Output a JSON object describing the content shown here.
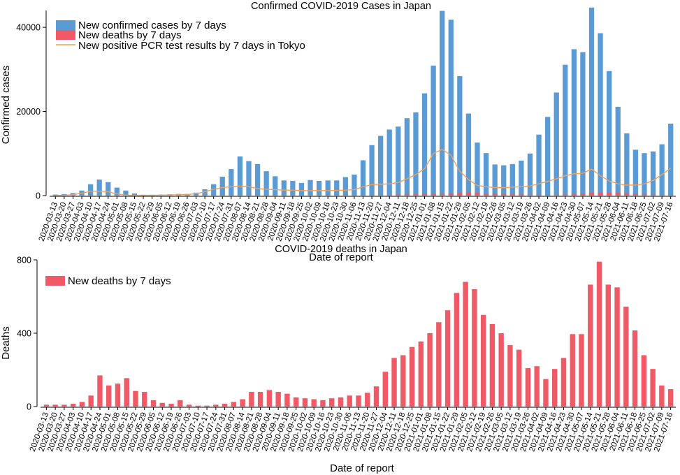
{
  "page": {
    "title": "Confirmed COVID-2019 Cases in Japan"
  },
  "colors": {
    "cases": "#5b9bd5",
    "deaths": "#ef5a66",
    "pcr": "#f0a05a",
    "axis": "#000000"
  },
  "chart_data": [
    {
      "type": "bar",
      "title": "Confirmed COVID-2019 Cases in Japan",
      "xlabel": "Date of report",
      "ylabel": "Confirmed cases",
      "ylim": [
        0,
        44000
      ],
      "yticks": [
        0,
        20000,
        40000
      ],
      "legend_position": "top-left",
      "grid": false,
      "categories": [
        "2020-03-13",
        "2020-03-20",
        "2020-03-27",
        "2020-04-03",
        "2020-04-10",
        "2020-04-17",
        "2020-04-24",
        "2020-05-01",
        "2020-05-08",
        "2020-05-15",
        "2020-05-22",
        "2020-05-29",
        "2020-06-05",
        "2020-06-12",
        "2020-06-19",
        "2020-06-26",
        "2020-07-03",
        "2020-07-10",
        "2020-07-17",
        "2020-07-24",
        "2020-07-31",
        "2020-08-07",
        "2020-08-14",
        "2020-08-21",
        "2020-08-28",
        "2020-09-04",
        "2020-09-11",
        "2020-09-18",
        "2020-09-25",
        "2020-10-02",
        "2020-10-09",
        "2020-10-16",
        "2020-10-23",
        "2020-10-30",
        "2020-11-06",
        "2020-11-13",
        "2020-11-20",
        "2020-11-27",
        "2020-12-04",
        "2020-12-11",
        "2020-12-18",
        "2020-12-25",
        "2021-01-01",
        "2021-01-08",
        "2021-01-15",
        "2021-01-22",
        "2021-01-29",
        "2021-02-05",
        "2021-02-12",
        "2021-02-19",
        "2021-02-26",
        "2021-03-05",
        "2021-03-12",
        "2021-03-19",
        "2021-03-26",
        "2021-04-02",
        "2021-04-09",
        "2021-04-16",
        "2021-04-23",
        "2021-04-30",
        "2021-05-07",
        "2021-05-14",
        "2021-05-21",
        "2021-05-28",
        "2021-06-04",
        "2021-06-11",
        "2021-06-18",
        "2021-06-25",
        "2021-07-02",
        "2021-07-09",
        "2021-07-16"
      ],
      "series": [
        {
          "name": "New confirmed cases by 7 days",
          "kind": "bar",
          "color": "#5b9bd5",
          "values": [
            250,
            350,
            600,
            1200,
            2700,
            3800,
            3200,
            1900,
            1200,
            500,
            200,
            200,
            250,
            300,
            400,
            400,
            700,
            1500,
            2700,
            4500,
            6300,
            9300,
            8200,
            7500,
            5800,
            4600,
            3600,
            3500,
            3000,
            3700,
            3500,
            3600,
            3600,
            4400,
            5000,
            8400,
            12000,
            14200,
            15700,
            16400,
            18400,
            19800,
            24300,
            30900,
            43900,
            41800,
            28400,
            19500,
            12600,
            10100,
            7400,
            7200,
            7500,
            8300,
            10000,
            14500,
            18700,
            24500,
            31100,
            34800,
            34100,
            44700,
            38600,
            29600,
            21100,
            14800,
            10900,
            10100,
            10500,
            12200,
            17100
          ]
        },
        {
          "name": "New deaths by 7 days",
          "kind": "bar",
          "color": "#ef5a66",
          "values": [
            10,
            10,
            10,
            15,
            25,
            60,
            170,
            115,
            125,
            155,
            85,
            80,
            35,
            20,
            15,
            35,
            10,
            5,
            5,
            10,
            15,
            25,
            40,
            80,
            80,
            90,
            80,
            70,
            50,
            45,
            40,
            35,
            45,
            50,
            60,
            60,
            75,
            110,
            190,
            265,
            280,
            325,
            355,
            400,
            460,
            525,
            620,
            680,
            640,
            500,
            450,
            400,
            335,
            310,
            210,
            220,
            150,
            205,
            265,
            395,
            395,
            665,
            790,
            665,
            650,
            545,
            415,
            280,
            205,
            115,
            95
          ]
        },
        {
          "name": "New positive PCR test results by 7 days in Tokyo",
          "kind": "line",
          "color": "#f0a05a",
          "values": [
            40,
            80,
            200,
            600,
            1000,
            1050,
            900,
            400,
            100,
            40,
            30,
            50,
            100,
            150,
            200,
            250,
            450,
            900,
            1500,
            1900,
            2100,
            2300,
            2100,
            1700,
            1500,
            1400,
            1300,
            1300,
            1200,
            1200,
            1200,
            1200,
            1250,
            1300,
            1400,
            2100,
            2600,
            2700,
            2800,
            3100,
            4000,
            5000,
            6400,
            10000,
            11000,
            9600,
            5800,
            3800,
            2400,
            2100,
            1900,
            1900,
            2000,
            2100,
            2300,
            2800,
            3400,
            4000,
            4700,
            5200,
            5300,
            6300,
            4700,
            3500,
            2800,
            2500,
            2500,
            2800,
            3600,
            5000,
            6500
          ]
        }
      ]
    },
    {
      "type": "bar",
      "title": "COVID-2019 deaths in Japan",
      "xlabel": "Date of report",
      "ylabel": "Deaths",
      "ylim": [
        0,
        800
      ],
      "yticks": [
        0,
        400,
        800
      ],
      "legend_position": "top-left",
      "grid": false,
      "categories": [
        "2020-03-13",
        "2020-03-20",
        "2020-03-27",
        "2020-04-03",
        "2020-04-10",
        "2020-04-17",
        "2020-04-24",
        "2020-05-01",
        "2020-05-08",
        "2020-05-15",
        "2020-05-22",
        "2020-05-29",
        "2020-06-05",
        "2020-06-12",
        "2020-06-19",
        "2020-06-26",
        "2020-07-03",
        "2020-07-10",
        "2020-07-17",
        "2020-07-24",
        "2020-07-31",
        "2020-08-07",
        "2020-08-14",
        "2020-08-21",
        "2020-08-28",
        "2020-09-04",
        "2020-09-11",
        "2020-09-18",
        "2020-09-25",
        "2020-10-02",
        "2020-10-09",
        "2020-10-16",
        "2020-10-23",
        "2020-10-30",
        "2020-11-06",
        "2020-11-13",
        "2020-11-20",
        "2020-11-27",
        "2020-12-04",
        "2020-12-11",
        "2020-12-18",
        "2020-12-25",
        "2021-01-01",
        "2021-01-08",
        "2021-01-15",
        "2021-01-22",
        "2021-01-29",
        "2021-02-05",
        "2021-02-12",
        "2021-02-19",
        "2021-02-26",
        "2021-03-05",
        "2021-03-12",
        "2021-03-19",
        "2021-03-26",
        "2021-04-02",
        "2021-04-09",
        "2021-04-16",
        "2021-04-23",
        "2021-04-30",
        "2021-05-07",
        "2021-05-14",
        "2021-05-21",
        "2021-05-28",
        "2021-06-04",
        "2021-06-11",
        "2021-06-18",
        "2021-06-25",
        "2021-07-02",
        "2021-07-09",
        "2021-07-16"
      ],
      "series": [
        {
          "name": "New deaths by 7 days",
          "kind": "bar",
          "color": "#ef5a66",
          "values": [
            10,
            10,
            10,
            15,
            25,
            60,
            170,
            115,
            125,
            155,
            85,
            80,
            35,
            20,
            15,
            35,
            10,
            5,
            5,
            10,
            15,
            25,
            40,
            80,
            80,
            90,
            80,
            70,
            50,
            45,
            40,
            35,
            45,
            50,
            60,
            60,
            75,
            110,
            190,
            265,
            280,
            325,
            355,
            400,
            460,
            525,
            620,
            680,
            640,
            500,
            450,
            400,
            335,
            310,
            210,
            220,
            150,
            205,
            265,
            395,
            395,
            665,
            790,
            665,
            650,
            545,
            415,
            280,
            205,
            115,
            95
          ]
        }
      ]
    }
  ]
}
